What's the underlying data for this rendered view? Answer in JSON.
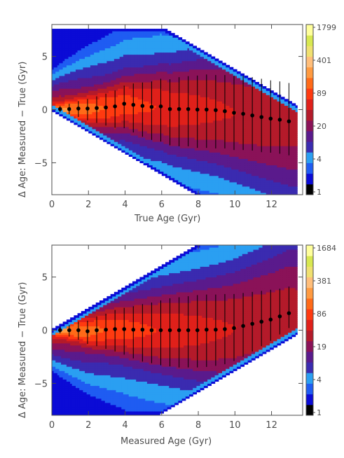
{
  "figure": {
    "colors": {
      "levels": [
        "#000000",
        "#0b0bd6",
        "#1f5cf2",
        "#2a9ff2",
        "#3a2bb0",
        "#5a1a8c",
        "#8a1258",
        "#b41a2a",
        "#e0201a",
        "#ff3a10",
        "#ff6a18",
        "#ff9a40",
        "#ffbe7a",
        "#f0e070",
        "#d8e850",
        "#ffff9c"
      ],
      "points": "#000000",
      "axis": "#4d4d4d"
    }
  },
  "chart_data": [
    {
      "type": "heatmap",
      "xlabel": "True Age (Gyr)",
      "ylabel": "Δ Age: Measured − True (Gyr)",
      "xlim": [
        0,
        13.7
      ],
      "ylim": [
        -8,
        8
      ],
      "x_ticks": [
        "0",
        "2",
        "4",
        "6",
        "8",
        "10",
        "12"
      ],
      "y_ticks": [
        "−5",
        "0",
        "5"
      ],
      "colorbar_ticks": [
        "1799",
        "401",
        "89",
        "20",
        "4",
        "1"
      ],
      "mode": "true",
      "series": [
        {
          "kind": "median_with_errorbars",
          "x": [
            0.45,
            0.95,
            1.45,
            1.95,
            2.45,
            2.95,
            3.45,
            3.95,
            4.45,
            4.95,
            5.45,
            5.95,
            6.45,
            6.95,
            7.45,
            7.95,
            8.45,
            8.95,
            9.45,
            9.95,
            10.45,
            10.95,
            11.45,
            11.95,
            12.45,
            12.95
          ],
          "y": [
            0.05,
            0.05,
            0.1,
            0.1,
            0.15,
            0.2,
            0.3,
            0.55,
            0.45,
            0.35,
            0.25,
            0.3,
            0.05,
            0.05,
            0.05,
            0.0,
            0.0,
            -0.05,
            -0.15,
            -0.3,
            -0.4,
            -0.55,
            -0.7,
            -0.85,
            -0.95,
            -1.1
          ],
          "err_low": [
            0.3,
            0.5,
            0.8,
            1.1,
            1.4,
            1.7,
            2.0,
            2.3,
            2.6,
            2.9,
            3.1,
            3.3,
            3.4,
            3.5,
            3.5,
            3.6,
            3.6,
            3.6,
            3.5,
            3.5,
            3.4,
            3.3,
            3.3,
            3.2,
            3.2,
            3.2
          ],
          "err_high": [
            0.3,
            0.5,
            0.7,
            0.9,
            1.1,
            1.3,
            1.5,
            1.7,
            2.0,
            2.2,
            2.4,
            2.6,
            2.8,
            3.0,
            3.1,
            3.2,
            3.3,
            3.3,
            3.4,
            3.5,
            3.6,
            3.6,
            3.6,
            3.6,
            3.6,
            3.6
          ]
        }
      ]
    },
    {
      "type": "heatmap",
      "xlabel": "Measured Age (Gyr)",
      "ylabel": "Δ Age: Measured − True (Gyr)",
      "xlim": [
        0,
        13.7
      ],
      "ylim": [
        -8,
        8
      ],
      "x_ticks": [
        "0",
        "2",
        "4",
        "6",
        "8",
        "10",
        "12"
      ],
      "y_ticks": [
        "−5",
        "0",
        "5"
      ],
      "colorbar_ticks": [
        "1684",
        "381",
        "86",
        "19",
        "4",
        "1"
      ],
      "mode": "measured",
      "series": [
        {
          "kind": "median_with_errorbars",
          "x": [
            0.45,
            0.95,
            1.45,
            1.95,
            2.45,
            2.95,
            3.45,
            3.95,
            4.45,
            4.95,
            5.45,
            5.95,
            6.45,
            6.95,
            7.45,
            7.95,
            8.45,
            8.95,
            9.45,
            9.95,
            10.45,
            10.95,
            11.45,
            11.95,
            12.45,
            12.95
          ],
          "y": [
            0.0,
            0.0,
            0.0,
            -0.1,
            0.0,
            0.05,
            0.1,
            0.1,
            0.05,
            0.05,
            0.0,
            0.0,
            0.0,
            0.0,
            0.0,
            0.0,
            0.05,
            0.05,
            0.1,
            0.2,
            0.4,
            0.6,
            0.8,
            1.0,
            1.3,
            1.6
          ],
          "err_low": [
            0.3,
            0.6,
            0.9,
            1.2,
            1.5,
            1.8,
            2.1,
            2.4,
            2.7,
            3.0,
            3.1,
            3.3,
            3.4,
            3.5,
            3.5,
            3.5,
            3.5,
            3.4,
            3.3,
            3.1,
            2.9,
            2.6,
            2.3,
            2.0,
            1.7,
            1.4
          ],
          "err_high": [
            0.3,
            0.5,
            0.8,
            1.0,
            1.3,
            1.5,
            1.8,
            2.0,
            2.2,
            2.4,
            2.6,
            2.8,
            3.0,
            3.1,
            3.2,
            3.3,
            3.3,
            3.3,
            3.3,
            3.2,
            3.1,
            3.0,
            2.9,
            2.8,
            2.6,
            2.5
          ]
        }
      ]
    }
  ]
}
